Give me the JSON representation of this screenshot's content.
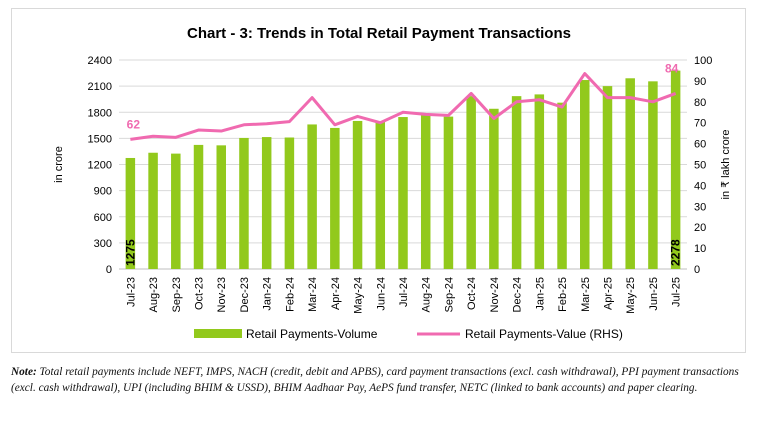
{
  "chart_data": {
    "type": "bar+line",
    "title": "Chart - 3: Trends in Total Retail Payment Transactions",
    "categories": [
      "Jul-23",
      "Aug-23",
      "Sep-23",
      "Oct-23",
      "Nov-23",
      "Dec-23",
      "Jan-24",
      "Feb-24",
      "Mar-24",
      "Apr-24",
      "May-24",
      "Jun-24",
      "Jul-24",
      "Aug-24",
      "Sep-24",
      "Oct-24",
      "Nov-24",
      "Dec-24",
      "Jan-25",
      "Feb-25",
      "Mar-25",
      "Apr-25",
      "May-25",
      "Jun-25",
      "Jul-25"
    ],
    "series": [
      {
        "name": "Retail Payments-Volume",
        "type": "bar",
        "axis": "left",
        "color": "#92c91c",
        "values": [
          1275,
          1335,
          1325,
          1425,
          1420,
          1505,
          1515,
          1510,
          1660,
          1620,
          1700,
          1695,
          1745,
          1775,
          1750,
          1985,
          1840,
          1985,
          2005,
          1910,
          2170,
          2100,
          2190,
          2155,
          2278
        ]
      },
      {
        "name": "Retail Payments-Value (RHS)",
        "type": "line",
        "axis": "right",
        "color": "#f06ab0",
        "values": [
          62,
          63.5,
          63,
          66.5,
          66,
          69,
          69.5,
          70.5,
          82,
          69,
          73,
          70,
          75,
          74,
          73.5,
          84,
          72,
          80,
          81,
          77.5,
          93.5,
          82,
          82,
          80,
          84
        ]
      }
    ],
    "data_labels": {
      "volume_first": "1275",
      "volume_last": "2278",
      "value_first": "62",
      "value_last": "84"
    },
    "ylabel_left": "in crore",
    "ylabel_right": "in ₹ lakh crore",
    "ylim_left": [
      0,
      2400
    ],
    "yticks_left": [
      "0",
      "300",
      "600",
      "900",
      "1200",
      "1500",
      "1800",
      "2100",
      "2400"
    ],
    "ylim_right": [
      0,
      100
    ],
    "yticks_right": [
      "0",
      "10",
      "20",
      "30",
      "40",
      "50",
      "60",
      "70",
      "80",
      "90",
      "100"
    ],
    "grid": true,
    "legend_position": "bottom"
  },
  "note": {
    "label": "Note:",
    "text": " Total retail payments include NEFT, IMPS, NACH (credit, debit and APBS), card payment transactions (excl. cash withdrawal), PPI payment transactions (excl. cash withdrawal), UPI (including BHIM & USSD), BHIM Aadhaar Pay, AePS fund transfer, NETC (linked to bank accounts) and paper clearing."
  }
}
